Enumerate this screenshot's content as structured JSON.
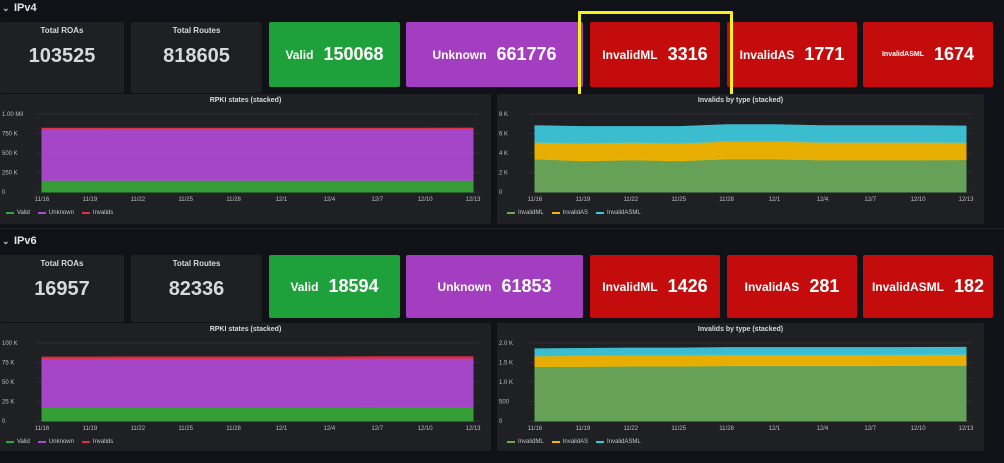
{
  "sections": [
    {
      "title": "IPv4",
      "stats": {
        "roas_label": "Total ROAs",
        "roas_value": "103525",
        "routes_label": "Total Routes",
        "routes_value": "818605",
        "valid_label": "Valid",
        "valid_value": "150068",
        "unknown_label": "Unknown",
        "unknown_value": "661776",
        "invalidml_label": "InvalidML",
        "invalidml_value": "3316",
        "invalidas_label": "InvalidAS",
        "invalidas_value": "1771",
        "invalidasml_label": "InvalidASML",
        "invalidasml_value": "1674"
      },
      "rpki_title": "RPKI states (stacked)",
      "inv_title": "Invalids by type (stacked)",
      "rpki_legend": [
        "Valid",
        "Unknown",
        "Invalids"
      ],
      "inv_legend": [
        "InvalidML",
        "InvalidAS",
        "InvalidASML"
      ]
    },
    {
      "title": "IPv6",
      "stats": {
        "roas_label": "Total ROAs",
        "roas_value": "16957",
        "routes_label": "Total Routes",
        "routes_value": "82336",
        "valid_label": "Valid",
        "valid_value": "18594",
        "unknown_label": "Unknown",
        "unknown_value": "61853",
        "invalidml_label": "InvalidML",
        "invalidml_value": "1426",
        "invalidas_label": "InvalidAS",
        "invalidas_value": "281",
        "invalidasml_label": "InvalidASML",
        "invalidasml_value": "182"
      },
      "rpki_title": "RPKI states (stacked)",
      "inv_title": "Invalids by type (stacked)",
      "rpki_legend": [
        "Valid",
        "Unknown",
        "Invalids"
      ],
      "inv_legend": [
        "InvalidML",
        "InvalidAS",
        "InvalidASML"
      ]
    }
  ],
  "colors": {
    "valid": "#1ea03a",
    "unknown": "#a23ebf",
    "invalid": "#c40c0c",
    "area_valid": "#37a539",
    "area_unknown": "#ad49d1",
    "area_invalid": "#e02f44",
    "area_ml": "#6aa85a",
    "area_as": "#f2b600",
    "area_asml": "#3ec6d9",
    "highlight": "#f7f219"
  },
  "chart_data": [
    {
      "type": "area",
      "title": "RPKI states (stacked)",
      "x": [
        "11/16",
        "11/19",
        "11/22",
        "11/25",
        "11/28",
        "12/1",
        "12/4",
        "12/7",
        "12/10",
        "12/13"
      ],
      "yticks": [
        "1.00 Mil",
        "750 K",
        "500 K",
        "250 K",
        "0"
      ],
      "ylim": [
        0,
        1000000
      ],
      "series": [
        {
          "name": "Valid",
          "values": [
            150000,
            150000,
            150000,
            150000,
            150000,
            150000,
            150000,
            150000,
            150000,
            150000
          ]
        },
        {
          "name": "Unknown",
          "values": [
            660000,
            660000,
            661000,
            661000,
            661000,
            661000,
            661000,
            661000,
            661000,
            661776
          ]
        },
        {
          "name": "Invalids",
          "values": [
            7000,
            7000,
            7000,
            7000,
            7000,
            7000,
            7000,
            7000,
            7000,
            7000
          ]
        }
      ]
    },
    {
      "type": "area",
      "title": "Invalids by type (stacked)",
      "x": [
        "11/16",
        "11/19",
        "11/22",
        "11/25",
        "11/28",
        "12/1",
        "12/4",
        "12/7",
        "12/10",
        "12/13"
      ],
      "yticks": [
        "8 K",
        "6 K",
        "4 K",
        "2 K",
        "0"
      ],
      "ylim": [
        0,
        8000
      ],
      "series": [
        {
          "name": "InvalidML",
          "values": [
            3400,
            3200,
            3300,
            3200,
            3400,
            3400,
            3300,
            3300,
            3300,
            3316
          ]
        },
        {
          "name": "InvalidAS",
          "values": [
            1700,
            1800,
            1800,
            1800,
            1800,
            1800,
            1800,
            1800,
            1800,
            1771
          ]
        },
        {
          "name": "InvalidASML",
          "values": [
            1700,
            1700,
            1600,
            1700,
            1700,
            1700,
            1700,
            1700,
            1700,
            1674
          ]
        }
      ]
    },
    {
      "type": "area",
      "title": "RPKI states (stacked)",
      "x": [
        "11/16",
        "11/19",
        "11/22",
        "11/25",
        "11/28",
        "12/1",
        "12/4",
        "12/7",
        "12/10",
        "12/13"
      ],
      "yticks": [
        "100 K",
        "75 K",
        "50 K",
        "25 K",
        "0"
      ],
      "ylim": [
        0,
        100000
      ],
      "series": [
        {
          "name": "Valid",
          "values": [
            18500,
            18500,
            18500,
            18500,
            18500,
            18500,
            18500,
            18600,
            18600,
            18594
          ]
        },
        {
          "name": "Unknown",
          "values": [
            61500,
            61500,
            61600,
            61600,
            61700,
            61700,
            61700,
            61800,
            61800,
            61853
          ]
        },
        {
          "name": "Invalids",
          "values": [
            1900,
            1900,
            1900,
            1900,
            1900,
            1900,
            1900,
            1900,
            1900,
            1889
          ]
        }
      ]
    },
    {
      "type": "area",
      "title": "Invalids by type (stacked)",
      "x": [
        "11/16",
        "11/19",
        "11/22",
        "11/25",
        "11/28",
        "12/1",
        "12/4",
        "12/7",
        "12/10",
        "12/13"
      ],
      "yticks": [
        "2.0 K",
        "1.5 K",
        "1.0 K",
        "500",
        "0"
      ],
      "ylim": [
        0,
        2000
      ],
      "series": [
        {
          "name": "InvalidML",
          "values": [
            1400,
            1400,
            1410,
            1410,
            1420,
            1420,
            1420,
            1420,
            1425,
            1426
          ]
        },
        {
          "name": "InvalidAS",
          "values": [
            270,
            280,
            280,
            280,
            280,
            280,
            280,
            280,
            280,
            281
          ]
        },
        {
          "name": "InvalidASML",
          "values": [
            180,
            180,
            180,
            180,
            180,
            180,
            180,
            180,
            180,
            182
          ]
        }
      ]
    }
  ]
}
